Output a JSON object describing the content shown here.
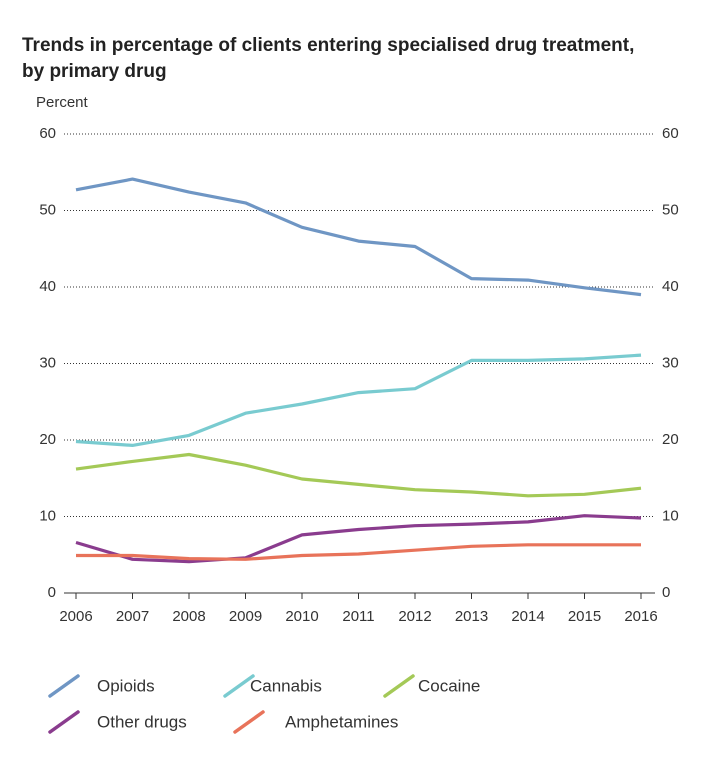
{
  "chart_data": {
    "type": "line",
    "title": [
      "Trends in percentage of clients entering specialised drug treatment,",
      "by primary drug"
    ],
    "y_label": "Percent",
    "x": [
      2006,
      2007,
      2008,
      2009,
      2010,
      2011,
      2012,
      2013,
      2014,
      2015,
      2016
    ],
    "xlim": [
      2006,
      2016
    ],
    "xticks": [
      2006,
      2007,
      2008,
      2009,
      2010,
      2011,
      2012,
      2013,
      2014,
      2015,
      2016
    ],
    "ylim": [
      0,
      60
    ],
    "yticks": [
      0,
      10,
      20,
      30,
      40,
      50,
      60
    ],
    "grid": true,
    "series": [
      {
        "name": "Opioids",
        "color": "#6f96c4",
        "values": [
          52.7,
          54.1,
          52.4,
          51.0,
          47.8,
          46.0,
          45.3,
          41.1,
          40.9,
          39.9,
          39.0
        ]
      },
      {
        "name": "Cannabis",
        "color": "#79cbd0",
        "values": [
          19.8,
          19.3,
          20.6,
          23.5,
          24.7,
          26.2,
          26.7,
          30.4,
          30.4,
          30.6,
          31.1
        ]
      },
      {
        "name": "Cocaine",
        "color": "#a4c957",
        "values": [
          16.2,
          17.2,
          18.1,
          16.7,
          14.9,
          14.2,
          13.5,
          13.2,
          12.7,
          12.9,
          13.7
        ]
      },
      {
        "name": "Other drugs",
        "color": "#8a3c8e",
        "values": [
          6.6,
          4.4,
          4.1,
          4.6,
          7.6,
          8.3,
          8.8,
          9.0,
          9.3,
          10.1,
          9.8
        ]
      },
      {
        "name": "Amphetamines",
        "color": "#e8735a",
        "values": [
          4.9,
          4.9,
          4.5,
          4.4,
          4.9,
          5.1,
          5.6,
          6.1,
          6.3,
          6.3,
          6.3
        ]
      }
    ]
  }
}
